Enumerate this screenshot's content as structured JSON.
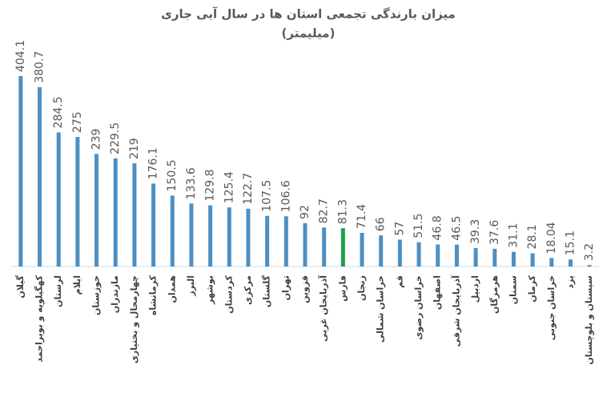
{
  "chart_data": {
    "type": "bar",
    "title": "میزان بارندگی تجمعی استان ها در سال آبی جاری",
    "subtitle": "(میلیمتر)",
    "categories": [
      "گیلان",
      "کهگیلویه و بویراحمد",
      "لرستان",
      "ایلام",
      "خوزستان",
      "مازندران",
      "چهارمحال و بختیاری",
      "کرمانشاه",
      "همدان",
      "البرز",
      "بوشهر",
      "کردستان",
      "مرکزی",
      "گلستان",
      "تهران",
      "قزوین",
      "آذربایجان غربی",
      "فارس",
      "زنجان",
      "خراسان شمالی",
      "قم",
      "خراسان رضوی",
      "اصفهان",
      "آذربایجان شرقی",
      "اردبیل",
      "هرمزگان",
      "سمنان",
      "کرمان",
      "خراسان جنوبی",
      "یزد",
      "سیستان و بلوچستان"
    ],
    "values": [
      404.1,
      380.7,
      284.5,
      275,
      239,
      229.5,
      219,
      176.1,
      150.5,
      133.6,
      129.8,
      125.4,
      122.7,
      107.5,
      106.6,
      92,
      82.7,
      81.3,
      71.4,
      66,
      57,
      51.5,
      46.8,
      46.5,
      39.3,
      37.6,
      31.1,
      28.1,
      18.04,
      15.1,
      3.2
    ],
    "colors": [
      "#4e8fc2",
      "#4e8fc2",
      "#4e8fc2",
      "#4e8fc2",
      "#4e8fc2",
      "#4e8fc2",
      "#4e8fc2",
      "#4e8fc2",
      "#4e8fc2",
      "#4e8fc2",
      "#4e8fc2",
      "#4e8fc2",
      "#4e8fc2",
      "#4e8fc2",
      "#4e8fc2",
      "#4e8fc2",
      "#4e8fc2",
      "#1aa14b",
      "#4e8fc2",
      "#4e8fc2",
      "#4e8fc2",
      "#4e8fc2",
      "#4e8fc2",
      "#4e8fc2",
      "#4e8fc2",
      "#4e8fc2",
      "#4e8fc2",
      "#4e8fc2",
      "#4e8fc2",
      "#4e8fc2",
      "#4e8fc2"
    ],
    "ylim": [
      0,
      450
    ]
  }
}
